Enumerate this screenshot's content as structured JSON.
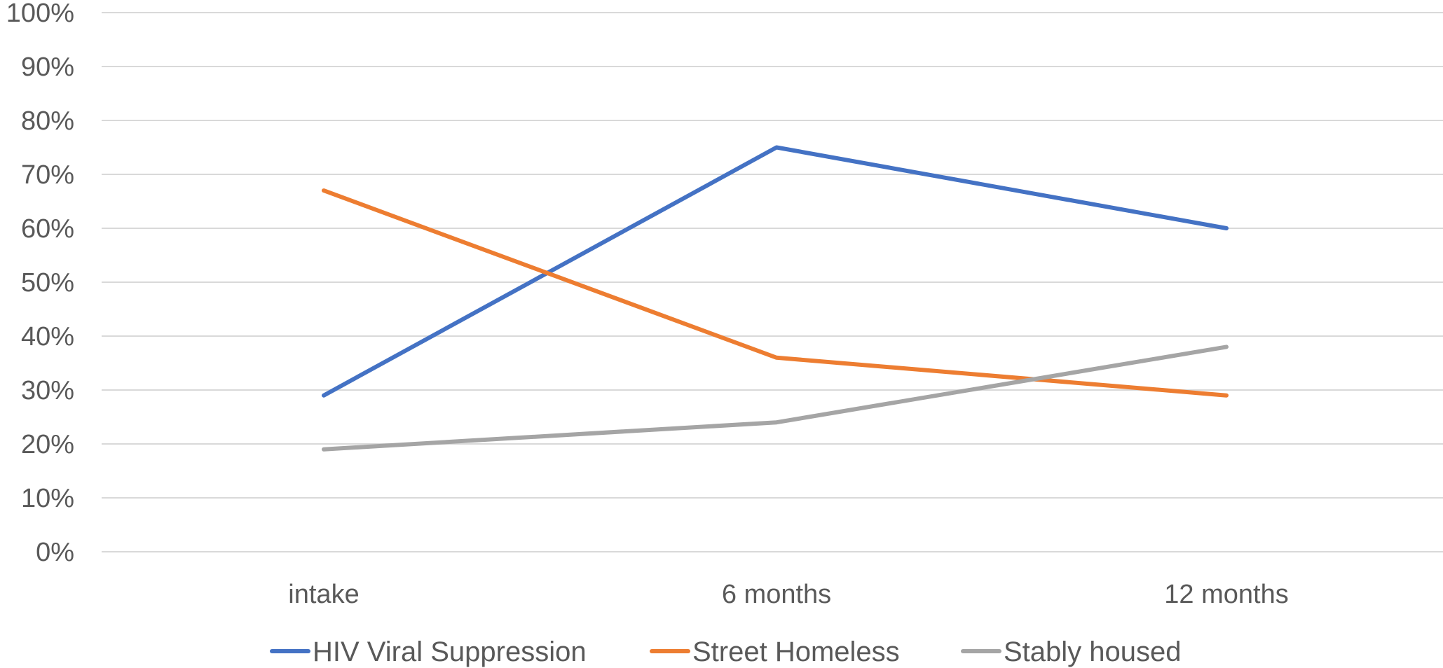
{
  "chart_data": {
    "type": "line",
    "title": "",
    "xlabel": "",
    "ylabel": "",
    "categories": [
      "intake",
      "6 months",
      "12 months"
    ],
    "ylim": [
      0,
      100
    ],
    "y_ticks": [
      0,
      10,
      20,
      30,
      40,
      50,
      60,
      70,
      80,
      90,
      100
    ],
    "y_tick_labels": [
      "0%",
      "10%",
      "20%",
      "30%",
      "40%",
      "50%",
      "60%",
      "70%",
      "80%",
      "90%",
      "100%"
    ],
    "grid": true,
    "legend_position": "bottom",
    "series": [
      {
        "name": "HIV Viral Suppression",
        "values": [
          29,
          75,
          60
        ],
        "color": "#4472C4"
      },
      {
        "name": "Street Homeless",
        "values": [
          67,
          36,
          29
        ],
        "color": "#ED7D31"
      },
      {
        "name": "Stably housed",
        "values": [
          19,
          24,
          38
        ],
        "color": "#A5A5A5"
      }
    ]
  }
}
